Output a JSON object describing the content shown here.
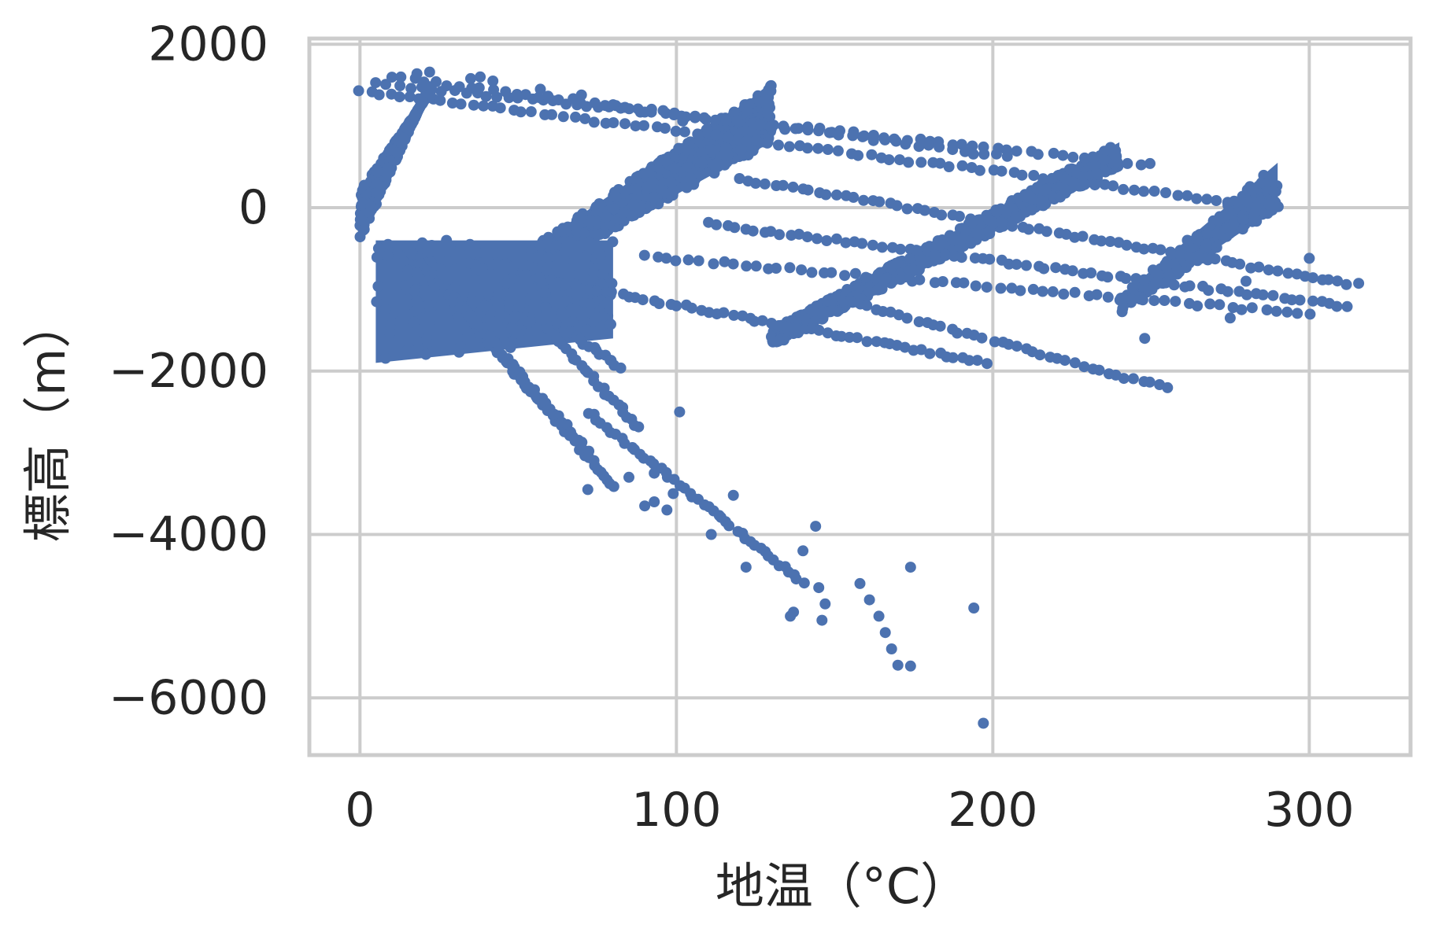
{
  "chart_data": {
    "type": "scatter",
    "title": "",
    "xlabel": "地温（°C）",
    "ylabel": "標高（m）",
    "xlim": [
      -16,
      332
    ],
    "ylim": [
      -6700,
      2070
    ],
    "xticks": [
      0,
      100,
      200,
      300
    ],
    "yticks": [
      2000,
      0,
      -2000,
      -4000,
      -6000
    ],
    "xtick_labels": [
      "0",
      "100",
      "200",
      "300"
    ],
    "ytick_labels": [
      "2000",
      "0",
      "−2000",
      "−4000",
      "−6000"
    ],
    "grid": true,
    "legend": "none",
    "colors": {
      "points": "#4c72b0",
      "grid": "#cccccc",
      "frame": "#cccccc",
      "text": "#262626",
      "background": "#ffffff"
    },
    "series": [
      {
        "bands": [
          {
            "x": [
              0,
              22
            ],
            "y0": [
              200,
              1400
            ],
            "y1": [
              -400,
              1500
            ],
            "count": 420
          },
          {
            "x": [
              22,
              130
            ],
            "y0": [
              -1350,
              1500
            ],
            "y1": [
              -1500,
              800
            ],
            "count": 900
          },
          {
            "x": [
              130,
              240
            ],
            "y0": [
              -1500,
              800
            ],
            "y1": [
              -1700,
              500
            ],
            "count": 700
          },
          {
            "x": [
              240,
              290
            ],
            "y0": [
              -1100,
              550
            ],
            "y1": [
              -1300,
              0
            ],
            "count": 220
          },
          {
            "x": [
              5,
              80
            ],
            "y0": [
              -400,
              -400
            ],
            "y1": [
              -1900,
              -1600
            ],
            "count": 180
          }
        ],
        "curves": [
          {
            "x0": 0,
            "y0": 1430,
            "x1": 290,
            "y1": 0,
            "n": 90
          },
          {
            "x0": 5,
            "y0": 1520,
            "x1": 250,
            "y1": 530,
            "n": 70
          },
          {
            "x0": 10,
            "y0": 1600,
            "x1": 205,
            "y1": 620,
            "n": 55
          },
          {
            "x0": 120,
            "y0": 350,
            "x1": 315,
            "y1": -940,
            "n": 70
          },
          {
            "x0": 110,
            "y0": -200,
            "x1": 312,
            "y1": -1210,
            "n": 70
          },
          {
            "x0": 90,
            "y0": -600,
            "x1": 300,
            "y1": -1300,
            "n": 60
          },
          {
            "x0": 60,
            "y0": -900,
            "x1": 198,
            "y1": -1900,
            "n": 55
          },
          {
            "x0": 150,
            "y0": -1100,
            "x1": 255,
            "y1": -2210,
            "n": 40
          },
          {
            "x0": 15,
            "y0": -500,
            "x1": 80,
            "y1": -3400,
            "n": 70
          },
          {
            "x0": 30,
            "y0": -1100,
            "x1": 72,
            "y1": -3000,
            "n": 35
          },
          {
            "x0": 60,
            "y0": -1500,
            "x1": 88,
            "y1": -2700,
            "n": 25
          },
          {
            "x0": 65,
            "y0": -1500,
            "x1": 82,
            "y1": -1950,
            "n": 14
          },
          {
            "x0": 72,
            "y0": -2500,
            "x1": 140,
            "y1": -4600,
            "n": 45
          }
        ],
        "points": [
          [
            38,
            1600
          ],
          [
            42,
            1550
          ],
          [
            57,
            1450
          ],
          [
            70,
            1380
          ],
          [
            80,
            1260
          ],
          [
            90,
            1170
          ],
          [
            102,
            1060
          ],
          [
            22,
            1660
          ],
          [
            18,
            1640
          ],
          [
            35,
            1580
          ],
          [
            18,
            -800
          ],
          [
            90,
            -3650
          ],
          [
            93,
            -3600
          ],
          [
            97,
            -3700
          ],
          [
            99,
            -3500
          ],
          [
            93,
            -3250
          ],
          [
            85,
            -3300
          ],
          [
            72,
            -3450
          ],
          [
            101,
            -2500
          ],
          [
            111,
            -4000
          ],
          [
            122,
            -4400
          ],
          [
            118,
            -3520
          ],
          [
            136,
            -5000
          ],
          [
            137,
            -4950
          ],
          [
            140,
            -4200
          ],
          [
            144,
            -3900
          ],
          [
            145,
            -4650
          ],
          [
            146,
            -5050
          ],
          [
            147,
            -4850
          ],
          [
            158,
            -4600
          ],
          [
            161,
            -4800
          ],
          [
            164,
            -5000
          ],
          [
            166,
            -5200
          ],
          [
            168,
            -5400
          ],
          [
            170,
            -5600
          ],
          [
            174,
            -5610
          ],
          [
            174,
            -4400
          ],
          [
            194,
            -4900
          ],
          [
            197,
            -6310
          ],
          [
            248,
            -1600
          ],
          [
            275,
            -1350
          ],
          [
            280,
            -900
          ],
          [
            300,
            -620
          ]
        ]
      }
    ]
  }
}
